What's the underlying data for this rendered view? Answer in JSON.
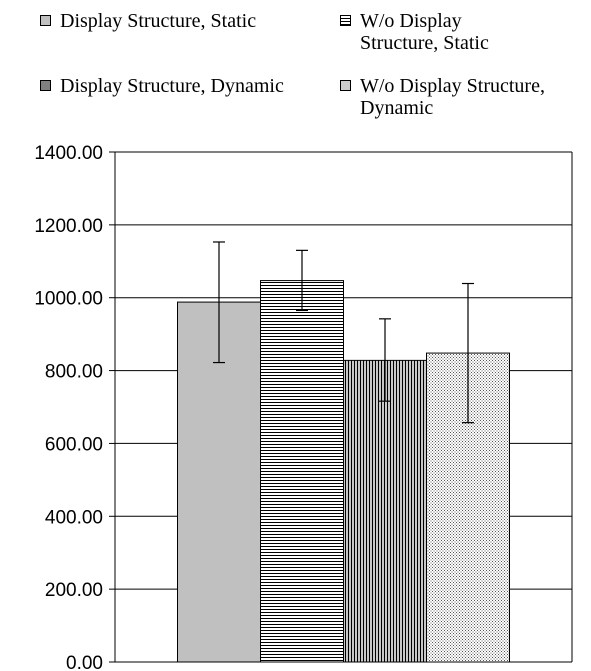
{
  "chart_data": {
    "type": "bar",
    "title": "",
    "xlabel": "",
    "ylabel": "",
    "ylim": [
      0,
      1400
    ],
    "yticks": [
      "0.00",
      "200.00",
      "400.00",
      "600.00",
      "800.00",
      "1000.00",
      "1200.00",
      "1400.00"
    ],
    "grid": true,
    "legend_position": "top",
    "series": [
      {
        "name": "Display Structure, Static",
        "value": 988,
        "error_low": 822,
        "error_high": 1153,
        "fill": "#c0c0c0",
        "pattern": "solid"
      },
      {
        "name": "W/o Display Structure, Static",
        "value": 1047,
        "error_low": 965,
        "error_high": 1130,
        "fill": "#ffffff",
        "pattern": "horizontal-lines"
      },
      {
        "name": "Display Structure, Dynamic",
        "value": 828,
        "error_low": 716,
        "error_high": 942,
        "fill": "#808080",
        "pattern": "vertical-lines"
      },
      {
        "name": "W/o Display Structure, Dynamic",
        "value": 848,
        "error_low": 657,
        "error_high": 1039,
        "fill": "#ffffff",
        "pattern": "dots"
      }
    ]
  },
  "legend": {
    "items": [
      {
        "line1": "Display Structure, Static",
        "line2": ""
      },
      {
        "line1": "W/o Display",
        "line2": "Structure, Static"
      },
      {
        "line1": "Display Structure, Dynamic",
        "line2": ""
      },
      {
        "line1": "W/o Display Structure,",
        "line2": "Dynamic"
      }
    ]
  }
}
